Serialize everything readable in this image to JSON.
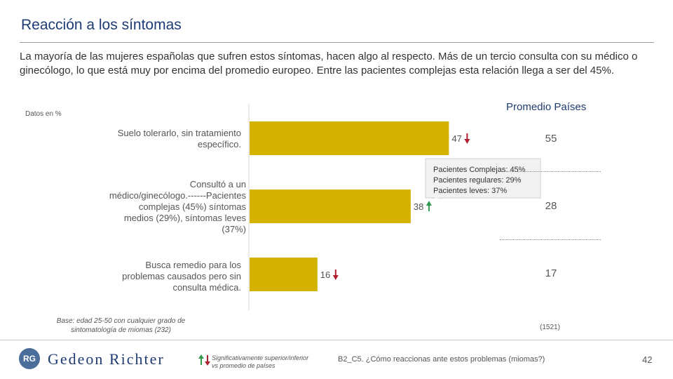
{
  "header": {
    "title": "Reacción a los síntomas",
    "intro": "La mayoría de las mujeres españolas que sufren estos síntomas, hacen algo al respecto. Más de un tercio consulta con su médico o ginecólogo, lo que está muy por encima del promedio europeo. Entre las pacientes complejas esta relación llega a ser del 45%."
  },
  "chart_data": {
    "type": "bar",
    "orientation": "horizontal",
    "units_label": "Datos en %",
    "categories": [
      "Suelo tolerarlo, sin tratamiento específico.",
      "Consultó a un médico/ginecólogo.------Pacientes complejas (45%) síntomas medios (29%), síntomas leves (37%)",
      "Busca remedio para los problemas causados pero sin consulta médica."
    ],
    "values": [
      47,
      38,
      16
    ],
    "value_labels": [
      "47",
      "38",
      "16"
    ],
    "significance": [
      "lower",
      "higher",
      "lower"
    ],
    "xlim": [
      0,
      100
    ],
    "bar_color": "#d4b200",
    "comparison": {
      "title": "Promedio Países",
      "values": [
        55,
        28,
        17
      ],
      "value_labels": [
        "55",
        "28",
        "17"
      ],
      "sample": "(1521)"
    },
    "callout": {
      "lines": [
        "Pacientes Complejas: 45%",
        "Pacientes regulares: 29%",
        "Pacientes leves: 37%"
      ]
    }
  },
  "colors": {
    "bar": "#d4b200",
    "higher": "#2e9a4a",
    "lower": "#b02030",
    "title": "#1f3b73"
  },
  "footer": {
    "base": "Base: edad 25-50 con cualquier grado de sintomatología de miomas (232)",
    "brand": "Gedeon Richter",
    "logo_initials": "RG",
    "legend": "Significativamente superior/inferior vs promedio de países",
    "question": "B2_C5. ¿Cómo reaccionas ante estos problemas (miomas?)",
    "page": "42"
  }
}
